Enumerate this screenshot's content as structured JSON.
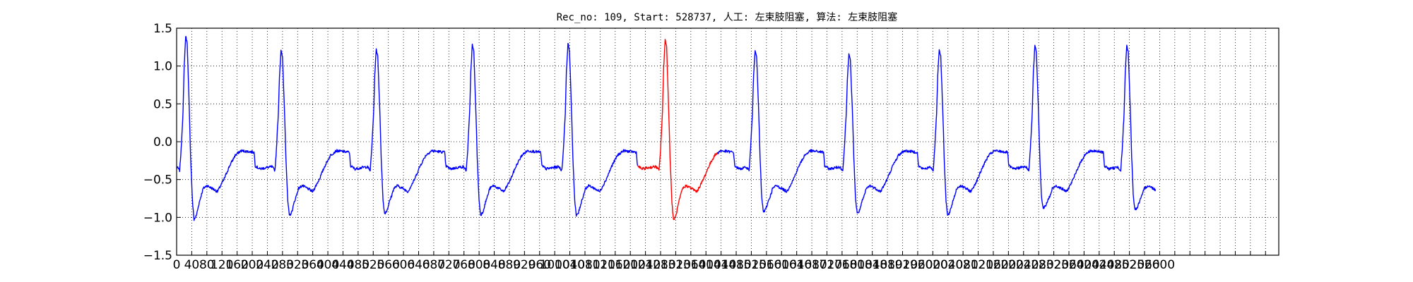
{
  "chart_data": {
    "type": "line",
    "title": "Rec_no: 109, Start: 528737, 人工: 左束肢阻塞, 算法: 左束肢阻塞",
    "xlabel": "",
    "ylabel": "",
    "xlim": [
      0,
      2915
    ],
    "ylim": [
      -1.5,
      1.5
    ],
    "grid": true,
    "x_tick_step": 40,
    "x_ticks_labeled_max": 2600,
    "y_ticks": [
      1.5,
      1.0,
      0.5,
      0.0,
      -0.5,
      -1.0,
      -1.5
    ],
    "y_tick_labels": [
      "1.5",
      "1.0",
      "0.5",
      "0.0",
      "−0.5",
      "−1.0",
      "−1.5"
    ],
    "sample_count": 2590,
    "colors": {
      "normal": "#0000ff",
      "highlight": "#ff0000",
      "grid": "#000000"
    },
    "highlight_x_range": [
      1220,
      1430
    ],
    "beat_centers": [
      24,
      276,
      528,
      782,
      1035,
      1292,
      1530,
      1778,
      2017,
      2270,
      2513
    ],
    "beat_peaks": [
      1.4,
      1.2,
      1.22,
      1.28,
      1.3,
      1.35,
      1.22,
      1.15,
      1.22,
      1.28,
      1.27
    ],
    "beat_troughs": [
      -1.03,
      -0.98,
      -0.95,
      -0.97,
      -0.98,
      -1.04,
      -0.93,
      -0.95,
      -0.98,
      -0.88,
      -0.9
    ],
    "waveform_keypoints": [
      [
        0,
        -0.33
      ],
      [
        8,
        -0.38
      ],
      [
        12,
        -0.1
      ],
      [
        17,
        0.4
      ],
      [
        20,
        1.0
      ],
      [
        24,
        1.4
      ],
      [
        28,
        1.3
      ],
      [
        33,
        0.5
      ],
      [
        37,
        -0.2
      ],
      [
        42,
        -0.8
      ],
      [
        46,
        -1.03
      ],
      [
        52,
        -0.98
      ],
      [
        60,
        -0.8
      ],
      [
        70,
        -0.62
      ],
      [
        80,
        -0.58
      ],
      [
        95,
        -0.62
      ],
      [
        108,
        -0.66
      ],
      [
        125,
        -0.5
      ],
      [
        140,
        -0.32
      ],
      [
        155,
        -0.18
      ],
      [
        170,
        -0.12
      ],
      [
        190,
        -0.13
      ],
      [
        205,
        -0.14
      ],
      [
        208,
        -0.32
      ],
      [
        220,
        -0.36
      ],
      [
        240,
        -0.34
      ],
      [
        255,
        -0.33
      ]
    ]
  }
}
